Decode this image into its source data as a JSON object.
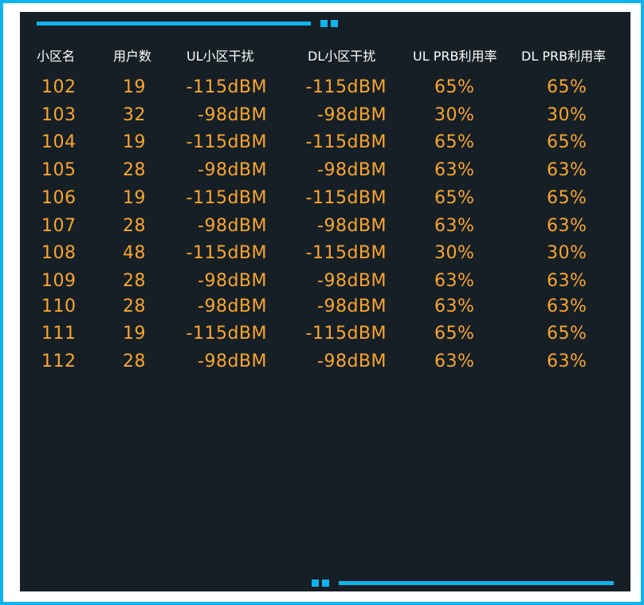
{
  "colors": {
    "accent": "#0fb4ec",
    "panel_bg": "#161f25",
    "header_text": "#ffffff",
    "value_text": "#f9a530"
  },
  "table": {
    "headers": [
      "小区名",
      "用户数",
      "UL小区干扰",
      "DL小区干扰",
      "UL PRB利用率",
      "DL PRB利用率"
    ],
    "rows": [
      [
        "102",
        "19",
        "-115dBM",
        "-115dBM",
        "65%",
        "65%"
      ],
      [
        "103",
        "32",
        "-98dBM",
        "-98dBM",
        "30%",
        "30%"
      ],
      [
        "104",
        "19",
        "-115dBM",
        "-115dBM",
        "65%",
        "65%"
      ],
      [
        "105",
        "28",
        "-98dBM",
        "-98dBM",
        "63%",
        "63%"
      ],
      [
        "106",
        "19",
        "-115dBM",
        "-115dBM",
        "65%",
        "65%"
      ],
      [
        "107",
        "28",
        "-98dBM",
        "-98dBM",
        "63%",
        "63%"
      ],
      [
        "108",
        "48",
        "-115dBM",
        "-115dBM",
        "30%",
        "30%"
      ],
      [
        "109",
        "28",
        "-98dBM",
        "-98dBM",
        "63%",
        "63%"
      ],
      [
        "110",
        "28",
        "-98dBM",
        "-98dBM",
        "63%",
        "63%"
      ],
      [
        "111",
        "19",
        "-115dBM",
        "-115dBM",
        "65%",
        "65%"
      ],
      [
        "112",
        "28",
        "-98dBM",
        "-98dBM",
        "63%",
        "63%"
      ]
    ]
  }
}
